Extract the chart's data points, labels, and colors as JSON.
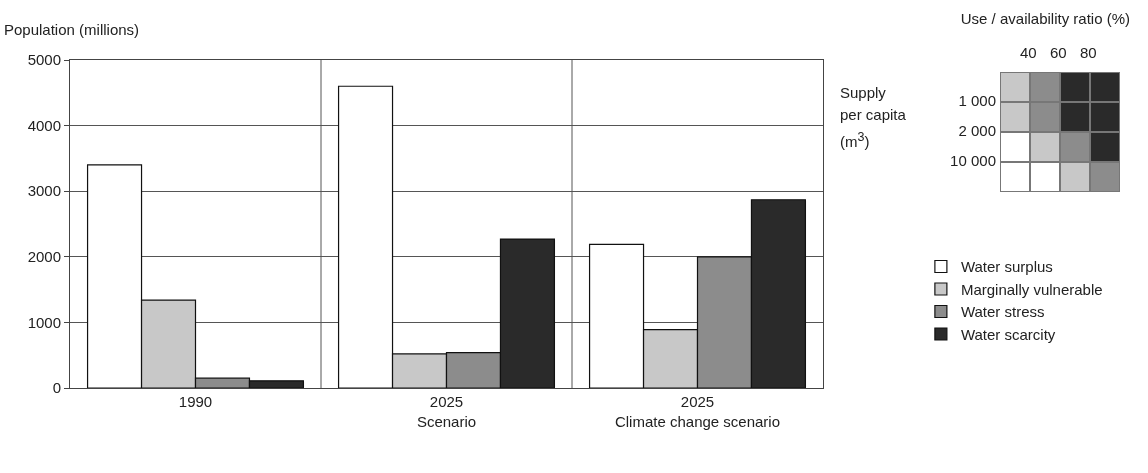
{
  "chart_data": [
    {
      "type": "bar",
      "ylabel": "Population (millions)",
      "categories": [
        "1990",
        "2025\nScenario",
        "2025\nClimate change scenario"
      ],
      "series": [
        {
          "name": "Water surplus",
          "color": "#ffffff",
          "values": [
            3400,
            4600,
            2190
          ]
        },
        {
          "name": "Marginally vulnerable",
          "color": "#c8c8c8",
          "values": [
            1340,
            520,
            890
          ]
        },
        {
          "name": "Water stress",
          "color": "#8c8c8c",
          "values": [
            150,
            540,
            2000
          ]
        },
        {
          "name": "Water scarcity",
          "color": "#2a2a2a",
          "values": [
            110,
            2270,
            2870
          ]
        }
      ],
      "ylim": [
        0,
        5000
      ],
      "yticks": [
        0,
        1000,
        2000,
        3000,
        4000,
        5000
      ],
      "grid": true,
      "legend": "right"
    },
    {
      "type": "other",
      "title": "Use / availability ratio (%)",
      "ylabel": "Supply per capita (m$^{3}$)",
      "categories": [
        "40",
        "60",
        "80"
      ],
      "y_categories": [
        "1 000",
        "2 000",
        "10 000"
      ],
      "colors": [
        "#c8c8c8",
        "#8c8c8c",
        "#2a2a2a",
        "#2a2a2a",
        "#c8c8c8",
        "#8c8c8c",
        "#2a2a2a",
        "#2a2a2a",
        "#ffffff",
        "#c8c8c8",
        "#8c8c8c",
        "#2a2a2a",
        "#ffffff",
        "#ffffff",
        "#c8c8c8",
        "#8c8c8c"
      ]
    }
  ]
}
